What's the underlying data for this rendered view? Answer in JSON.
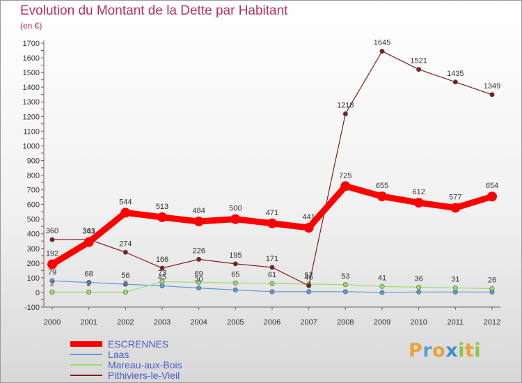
{
  "title": "Evolution du Montant de la Dette par Habitant",
  "subtitle": "(en €)",
  "logo": {
    "text": "Proxiti",
    "letters": [
      {
        "ch": "P",
        "color": "#e8a33a"
      },
      {
        "ch": "r",
        "color": "#5aa0d8"
      },
      {
        "ch": "o",
        "color": "#e8a33a"
      },
      {
        "ch": "x",
        "color": "#3a8fd0"
      },
      {
        "ch": "i",
        "color": "#8fc63f"
      },
      {
        "ch": "t",
        "color": "#e8a33a"
      },
      {
        "ch": "i",
        "color": "#8fc63f"
      }
    ]
  },
  "chart_data": {
    "type": "line",
    "x": [
      "2000",
      "2001",
      "2002",
      "2003",
      "2004",
      "2005",
      "2006",
      "2007",
      "2008",
      "2009",
      "2010",
      "2011",
      "2012"
    ],
    "ylim": [
      -100,
      1700
    ],
    "yticks": [
      -100,
      0,
      100,
      200,
      300,
      400,
      500,
      600,
      700,
      800,
      900,
      1000,
      1100,
      1200,
      1300,
      1400,
      1500,
      1600,
      1700
    ],
    "grid": false,
    "legend_position": "bottom-left",
    "series": [
      {
        "name": "ESCRENNES",
        "color": "#ff0000",
        "values": [
          192,
          343,
          544,
          513,
          484,
          500,
          471,
          441,
          725,
          655,
          612,
          577,
          654
        ],
        "labels": [
          "192",
          "343",
          "544",
          "513",
          "484",
          "500",
          "471",
          "441",
          "725",
          "655",
          "612",
          "577",
          "654"
        ]
      },
      {
        "name": "Laas",
        "color": "#5b9bd5",
        "values": [
          79,
          68,
          56,
          45,
          30,
          17,
          5,
          5,
          5,
          0,
          3,
          3,
          3
        ],
        "labels": [
          "79",
          "68",
          "56",
          "45",
          "30",
          "",
          "",
          "",
          "",
          "",
          "",
          "",
          ""
        ]
      },
      {
        "name": "Mareau-aux-Bois",
        "color": "#99dd66",
        "values": [
          2,
          2,
          2,
          73,
          69,
          65,
          61,
          57,
          53,
          41,
          36,
          31,
          26
        ],
        "labels": [
          "2",
          "2",
          "2",
          "73",
          "69",
          "65",
          "61",
          "57",
          "53",
          "41",
          "36",
          "31",
          "26"
        ]
      },
      {
        "name": "Pithiviers-le-Vieil",
        "color": "#7a1f1f",
        "values": [
          360,
          361,
          274,
          166,
          226,
          195,
          171,
          46,
          1218,
          1645,
          1521,
          1435,
          1349
        ],
        "labels": [
          "360",
          "361",
          "274",
          "166",
          "226",
          "195",
          "171",
          "46",
          "1218",
          "1645",
          "1521",
          "1435",
          "1349"
        ]
      }
    ]
  }
}
